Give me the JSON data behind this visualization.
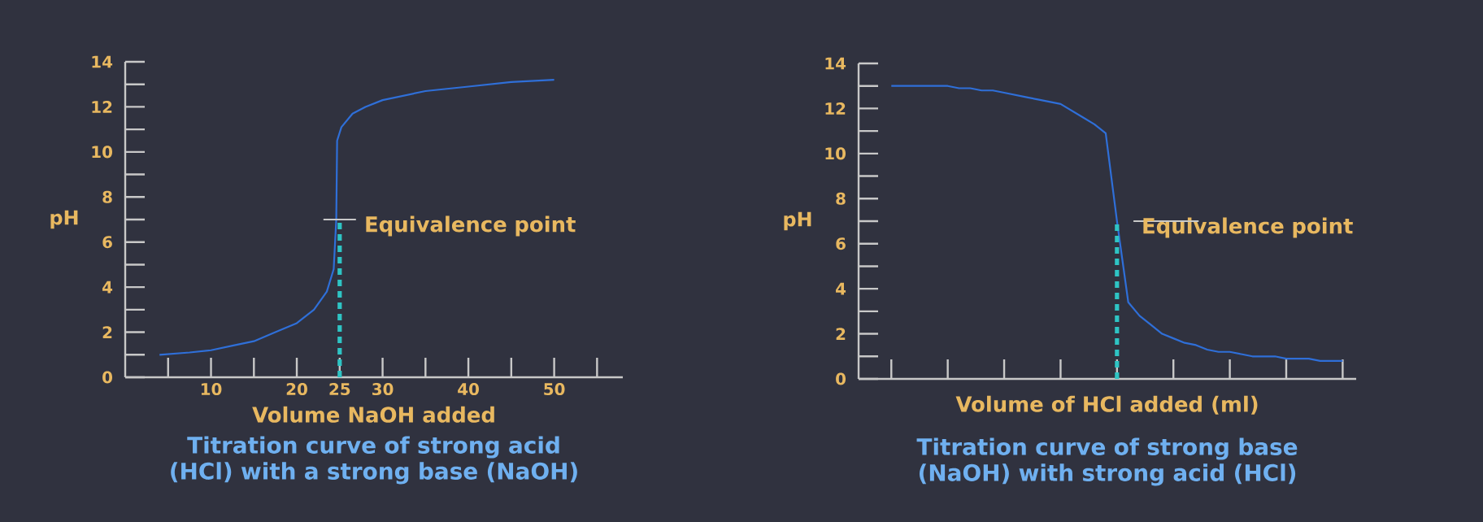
{
  "chart_data": [
    {
      "type": "line",
      "title": "Titration curve of strong acid (HCl) with a strong base (NaOH)",
      "xlabel": "Volume NaOH added",
      "ylabel": "pH",
      "x": [
        4,
        7.5,
        10,
        12.5,
        15,
        17.5,
        20,
        22,
        23.5,
        24.3,
        24.6,
        24.7,
        25.2,
        26.5,
        28,
        30,
        35,
        40,
        45,
        50
      ],
      "series": [
        {
          "color": "#2f6fd8",
          "values": [
            1.0,
            1.1,
            1.2,
            1.4,
            1.6,
            2.0,
            2.4,
            3.0,
            3.8,
            4.8,
            7.0,
            10.5,
            11.1,
            11.7,
            12.0,
            12.3,
            12.7,
            12.9,
            13.1,
            13.2
          ]
        }
      ],
      "xlim": [
        0,
        58
      ],
      "xticks": [
        {
          "value": 5,
          "label": null
        },
        10,
        {
          "value": 15,
          "label": null
        },
        20,
        25,
        30,
        {
          "value": 35,
          "label": null
        },
        40,
        {
          "value": 45,
          "label": null
        },
        50,
        {
          "value": 55,
          "label": null
        }
      ],
      "ylim": [
        0,
        14
      ],
      "yticks": [
        0,
        {
          "value": 1,
          "label": null
        },
        2,
        {
          "value": 3,
          "label": null
        },
        4,
        {
          "value": 5,
          "label": null
        },
        6,
        {
          "value": 7,
          "label": null
        },
        8,
        {
          "value": 9,
          "label": null
        },
        10,
        {
          "value": 11,
          "label": null
        },
        12,
        {
          "value": 13,
          "label": null
        },
        14
      ],
      "annotations": [
        {
          "text": "Equivalence point",
          "x": 25,
          "y": 7
        }
      ]
    },
    {
      "type": "line",
      "title": "Titration curve of strong base (NaOH) with strong acid (HCl)",
      "xlabel": "Volume of HCl added (ml)",
      "ylabel": "pH",
      "categories": [
        null,
        null,
        null,
        null,
        null,
        null,
        null,
        null,
        null,
        null,
        null,
        null,
        null,
        null,
        null,
        null,
        null,
        null,
        null,
        null,
        null,
        null,
        null,
        null,
        null,
        null,
        null,
        null,
        null,
        null,
        null,
        null,
        null,
        null,
        null,
        null,
        null,
        null,
        null,
        null,
        null
      ],
      "series": [
        {
          "color": "#2f6fd8",
          "values": [
            13.0,
            13.0,
            13.0,
            13.0,
            13.0,
            13.0,
            12.9,
            12.9,
            12.8,
            12.8,
            12.7,
            12.6,
            12.5,
            12.4,
            12.3,
            12.2,
            11.9,
            11.6,
            11.3,
            10.9,
            7.0,
            3.4,
            2.8,
            2.4,
            2.0,
            1.8,
            1.6,
            1.5,
            1.3,
            1.2,
            1.2,
            1.1,
            1.0,
            1.0,
            1.0,
            0.9,
            0.9,
            0.9,
            0.8,
            0.8,
            0.8
          ]
        }
      ],
      "ylim": [
        0,
        14
      ],
      "yticks": [
        0,
        {
          "value": 1,
          "label": null
        },
        2,
        {
          "value": 3,
          "label": null
        },
        4,
        {
          "value": 5,
          "label": null
        },
        6,
        {
          "value": 7,
          "label": null
        },
        8,
        {
          "value": 9,
          "label": null
        },
        10,
        {
          "value": 11,
          "label": null
        },
        12,
        {
          "value": 13,
          "label": null
        },
        14
      ],
      "tick_labels": "y",
      "annotations": [
        "Equivalence point"
      ]
    }
  ]
}
